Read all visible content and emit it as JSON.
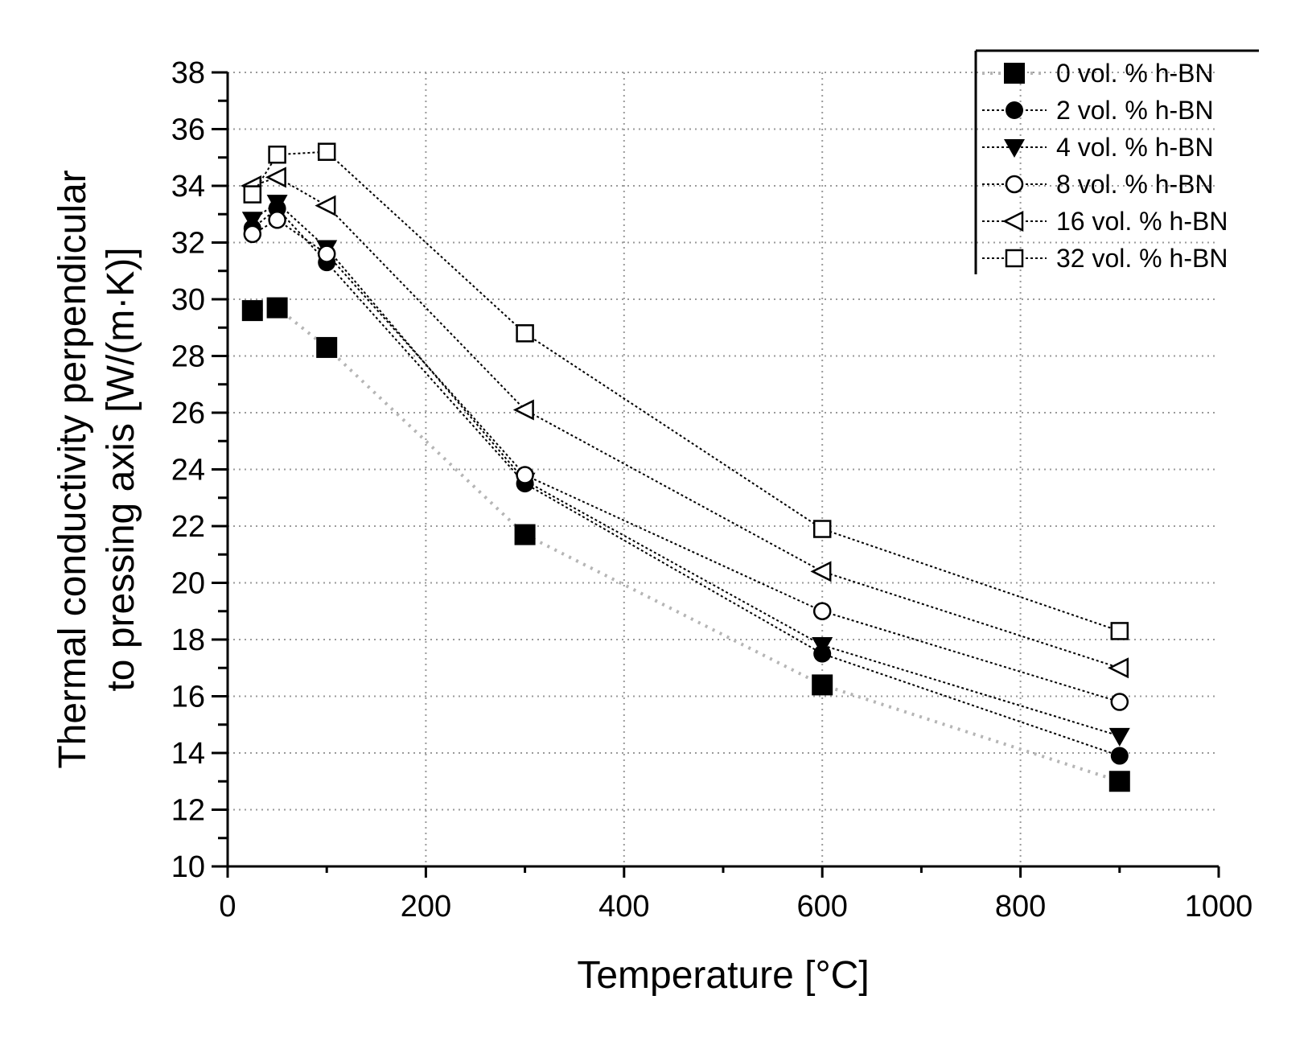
{
  "chart_data": {
    "type": "line",
    "title": "",
    "xlabel": "Temperature [°C]",
    "ylabel_line1": "Thermal conductivity perpendicular",
    "ylabel_line2": "to pressing axis [W/(m·K)]",
    "xlim": [
      0,
      1000
    ],
    "ylim": [
      10,
      38
    ],
    "xticks": [
      0,
      200,
      400,
      600,
      800,
      1000
    ],
    "yticks": [
      10,
      12,
      14,
      16,
      18,
      20,
      22,
      24,
      26,
      28,
      30,
      32,
      34,
      36,
      38
    ],
    "grid": true,
    "legend_position": "top-right",
    "series": [
      {
        "name": "0 vol. % h-BN",
        "marker": "square-filled",
        "line": "dotted-gray",
        "x": [
          25,
          50,
          100,
          300,
          600,
          900
        ],
        "y": [
          29.6,
          29.7,
          28.3,
          21.7,
          16.4,
          13.0
        ]
      },
      {
        "name": "2 vol. % h-BN",
        "marker": "circle-filled",
        "line": "dotted-black",
        "x": [
          25,
          50,
          100,
          300,
          600,
          900
        ],
        "y": [
          32.5,
          33.2,
          31.3,
          23.5,
          17.5,
          13.9
        ]
      },
      {
        "name": "4 vol. % h-BN",
        "marker": "triangle-down-filled",
        "line": "dotted-black",
        "x": [
          25,
          50,
          100,
          300,
          600,
          900
        ],
        "y": [
          32.8,
          33.4,
          31.8,
          23.6,
          17.8,
          14.6
        ]
      },
      {
        "name": "8 vol. % h-BN",
        "marker": "circle-open",
        "line": "dotted-black",
        "x": [
          25,
          50,
          100,
          300,
          600,
          900
        ],
        "y": [
          32.3,
          32.8,
          31.6,
          23.8,
          19.0,
          15.8
        ]
      },
      {
        "name": "16 vol. % h-BN",
        "marker": "triangle-left-open",
        "line": "dotted-black",
        "x": [
          25,
          50,
          100,
          300,
          600,
          900
        ],
        "y": [
          34.0,
          34.3,
          33.3,
          26.1,
          20.4,
          17.0
        ]
      },
      {
        "name": "32 vol. % h-BN",
        "marker": "square-open",
        "line": "dotted-black",
        "x": [
          25,
          50,
          100,
          300,
          600,
          900
        ],
        "y": [
          33.7,
          35.1,
          35.2,
          28.8,
          21.9,
          18.3
        ]
      }
    ]
  }
}
